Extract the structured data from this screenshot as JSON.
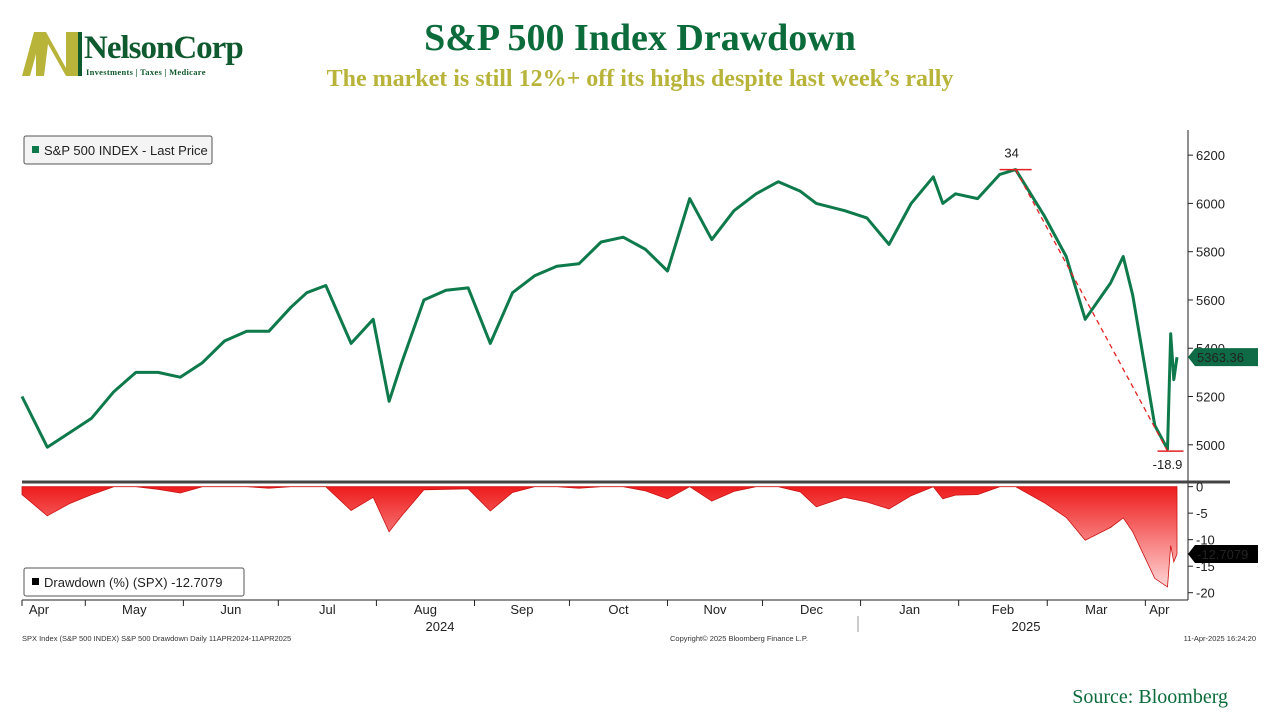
{
  "header": {
    "title": "S&P 500 Index Drawdown",
    "subtitle": "The market is still 12%+ off its highs despite last week’s rally",
    "source": "Source: Bloomberg"
  },
  "logo": {
    "name": "NelsonCorp",
    "tagline": "Investments | Taxes | Medicare",
    "colors": {
      "mark": "#b8b43a",
      "text": "#0f5a2e"
    }
  },
  "colors": {
    "price_line": "#0e7a4c",
    "drawdown_fill": "#ee1c1c",
    "annotation": "#e22222"
  },
  "chart_data": [
    {
      "type": "line",
      "legend": "S&P 500 INDEX - Last Price",
      "legend_position": "top-left",
      "last_value_label": "5363.36",
      "ylim": [
        4850,
        6300
      ],
      "yticks": [
        5000,
        5200,
        5400,
        5600,
        5800,
        6000,
        6200
      ],
      "annotations": {
        "peak_label": "34",
        "trough_label": "-18.9"
      },
      "x": [
        "2024-04-11",
        "2024-04-19",
        "2024-04-26",
        "2024-05-03",
        "2024-05-10",
        "2024-05-17",
        "2024-05-24",
        "2024-05-31",
        "2024-06-07",
        "2024-06-14",
        "2024-06-21",
        "2024-06-28",
        "2024-07-05",
        "2024-07-10",
        "2024-07-16",
        "2024-07-24",
        "2024-07-31",
        "2024-08-05",
        "2024-08-09",
        "2024-08-16",
        "2024-08-23",
        "2024-08-30",
        "2024-09-06",
        "2024-09-13",
        "2024-09-20",
        "2024-09-27",
        "2024-10-04",
        "2024-10-11",
        "2024-10-18",
        "2024-10-25",
        "2024-11-01",
        "2024-11-08",
        "2024-11-15",
        "2024-11-22",
        "2024-11-29",
        "2024-12-06",
        "2024-12-13",
        "2024-12-18",
        "2024-12-27",
        "2025-01-03",
        "2025-01-10",
        "2025-01-17",
        "2025-01-24",
        "2025-01-27",
        "2025-01-31",
        "2025-02-07",
        "2025-02-14",
        "2025-02-19",
        "2025-02-28",
        "2025-03-07",
        "2025-03-13",
        "2025-03-21",
        "2025-03-25",
        "2025-03-28",
        "2025-04-04",
        "2025-04-08",
        "2025-04-09",
        "2025-04-10",
        "2025-04-11"
      ],
      "series": [
        {
          "values": [
            5200,
            4990,
            5050,
            5110,
            5220,
            5300,
            5300,
            5280,
            5340,
            5430,
            5470,
            5470,
            5570,
            5630,
            5660,
            5420,
            5520,
            5180,
            5340,
            5600,
            5640,
            5650,
            5420,
            5630,
            5700,
            5740,
            5750,
            5840,
            5860,
            5810,
            5720,
            6020,
            5850,
            5970,
            6040,
            6090,
            6050,
            6000,
            5970,
            5940,
            5830,
            6000,
            6110,
            6000,
            6040,
            6020,
            6120,
            6140,
            5950,
            5780,
            5520,
            5670,
            5780,
            5620,
            5080,
            4982,
            5460,
            5270,
            5363
          ]
        }
      ]
    },
    {
      "type": "area",
      "legend": "Drawdown (%) (SPX) -12.7079",
      "legend_position": "bottom-left",
      "last_value_label": "-12.7079",
      "ylim": [
        -21,
        0.5
      ],
      "yticks": [
        0,
        -5,
        -10,
        -15,
        -20
      ],
      "x": [
        "2024-04-11",
        "2024-04-19",
        "2024-04-26",
        "2024-05-03",
        "2024-05-10",
        "2024-05-17",
        "2024-05-24",
        "2024-05-31",
        "2024-06-07",
        "2024-06-14",
        "2024-06-21",
        "2024-06-28",
        "2024-07-05",
        "2024-07-10",
        "2024-07-16",
        "2024-07-24",
        "2024-07-31",
        "2024-08-05",
        "2024-08-09",
        "2024-08-16",
        "2024-08-23",
        "2024-08-30",
        "2024-09-06",
        "2024-09-13",
        "2024-09-20",
        "2024-09-27",
        "2024-10-04",
        "2024-10-11",
        "2024-10-18",
        "2024-10-25",
        "2024-11-01",
        "2024-11-08",
        "2024-11-15",
        "2024-11-22",
        "2024-11-29",
        "2024-12-06",
        "2024-12-13",
        "2024-12-18",
        "2024-12-27",
        "2025-01-03",
        "2025-01-10",
        "2025-01-17",
        "2025-01-24",
        "2025-01-27",
        "2025-01-31",
        "2025-02-07",
        "2025-02-14",
        "2025-02-19",
        "2025-02-28",
        "2025-03-07",
        "2025-03-13",
        "2025-03-21",
        "2025-03-25",
        "2025-03-28",
        "2025-04-04",
        "2025-04-08",
        "2025-04-09",
        "2025-04-10",
        "2025-04-11"
      ],
      "series": [
        {
          "values": [
            -1.5,
            -5.5,
            -3.2,
            -1.5,
            0,
            0,
            -0.5,
            -1.2,
            0,
            0,
            0,
            -0.3,
            0,
            0,
            0,
            -4.5,
            -2,
            -8.5,
            -5.5,
            -0.6,
            -0.5,
            -0.4,
            -4.6,
            -1.1,
            0,
            0,
            -0.3,
            0,
            0,
            -0.8,
            -2.3,
            0,
            -2.7,
            -0.9,
            0,
            0,
            -1,
            -3.8,
            -2,
            -2.9,
            -4.2,
            -1.7,
            0,
            -2.3,
            -1.6,
            -1.5,
            0,
            0,
            -3,
            -5.8,
            -10.1,
            -7.7,
            -5.9,
            -8.5,
            -17.3,
            -18.9,
            -11.1,
            -14.2,
            -12.7
          ]
        }
      ]
    }
  ],
  "x_axis": {
    "months": [
      "Apr",
      "May",
      "Jun",
      "Jul",
      "Aug",
      "Sep",
      "Oct",
      "Nov",
      "Dec",
      "Jan",
      "Feb",
      "Mar",
      "Apr"
    ],
    "years": [
      "2024",
      "2025"
    ]
  },
  "footer": {
    "left": "SPX Index (S&P 500 INDEX) S&P 500 Drawdown  Daily 11APR2024-11APR2025",
    "center": "Copyright© 2025 Bloomberg Finance L.P.",
    "right": "11-Apr-2025 16:24:20"
  }
}
